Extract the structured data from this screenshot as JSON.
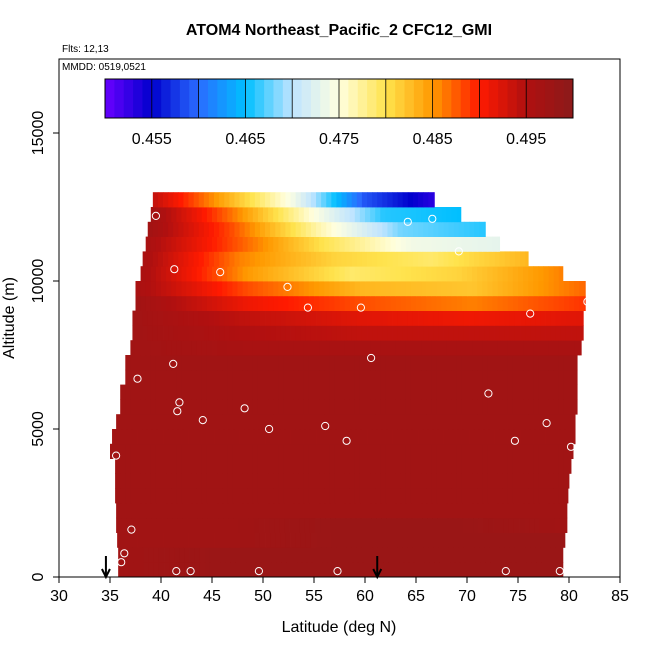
{
  "chart_data": {
    "type": "heatmap",
    "title": "ATOM4 Northeast_Pacific_2 CFC12_GMI",
    "flights_label": "Flts: 12,13",
    "date_label": "MMDD: 0519,0521",
    "xlabel": "Latitude (deg N)",
    "ylabel": "Altitude (m)",
    "xlim": [
      30,
      85
    ],
    "ylim": [
      0,
      17500
    ],
    "x_ticks": [
      "30",
      "35",
      "40",
      "45",
      "50",
      "55",
      "60",
      "65",
      "70",
      "75",
      "80",
      "85"
    ],
    "y_ticks": [
      "0",
      "5000",
      "10000",
      "15000"
    ],
    "colorbar": {
      "range": [
        0.45,
        0.5
      ],
      "tick_labels": [
        "0.455",
        "0.465",
        "0.475",
        "0.485",
        "0.495"
      ],
      "colors": [
        "#6a00ff",
        "#0000cd",
        "#2a6cff",
        "#00bfff",
        "#bfe4ff",
        "#ffffe0",
        "#ffe34d",
        "#ff9900",
        "#ff1a00",
        "#b01010",
        "#8b1a1a"
      ]
    },
    "grid": false,
    "legend": "colorbar top",
    "altitude_profile": [
      {
        "alt": 0,
        "lat_min": 35.8,
        "lat_max": 79.4,
        "values": [
          0.497,
          0.498,
          0.498,
          0.498,
          0.498
        ]
      },
      {
        "alt": 500,
        "lat_min": 35.8,
        "lat_max": 79.4,
        "values": [
          0.497,
          0.498,
          0.498,
          0.498,
          0.498
        ]
      },
      {
        "alt": 1000,
        "lat_min": 35.7,
        "lat_max": 79.6,
        "values": [
          0.497,
          0.497,
          0.498,
          0.498,
          0.498
        ]
      },
      {
        "alt": 1500,
        "lat_min": 35.6,
        "lat_max": 79.8,
        "values": [
          0.497,
          0.497,
          0.498,
          0.498,
          0.497
        ]
      },
      {
        "alt": 2000,
        "lat_min": 35.6,
        "lat_max": 79.8,
        "values": [
          0.497,
          0.497,
          0.497,
          0.497,
          0.497
        ]
      },
      {
        "alt": 2500,
        "lat_min": 35.5,
        "lat_max": 79.9,
        "values": [
          0.497,
          0.497,
          0.497,
          0.497,
          0.497
        ]
      },
      {
        "alt": 3000,
        "lat_min": 35.5,
        "lat_max": 80.0,
        "values": [
          0.497,
          0.497,
          0.497,
          0.497,
          0.497
        ]
      },
      {
        "alt": 3500,
        "lat_min": 35.5,
        "lat_max": 80.2,
        "values": [
          0.497,
          0.497,
          0.497,
          0.497,
          0.497
        ]
      },
      {
        "alt": 4000,
        "lat_min": 35.0,
        "lat_max": 80.4,
        "values": [
          0.497,
          0.497,
          0.497,
          0.497,
          0.497
        ]
      },
      {
        "alt": 4500,
        "lat_min": 35.2,
        "lat_max": 80.6,
        "values": [
          0.497,
          0.497,
          0.497,
          0.497,
          0.497
        ]
      },
      {
        "alt": 5000,
        "lat_min": 35.6,
        "lat_max": 80.6,
        "values": [
          0.497,
          0.497,
          0.497,
          0.497,
          0.497
        ]
      },
      {
        "alt": 5500,
        "lat_min": 36.0,
        "lat_max": 80.8,
        "values": [
          0.497,
          0.497,
          0.497,
          0.497,
          0.497
        ]
      },
      {
        "alt": 6000,
        "lat_min": 36.0,
        "lat_max": 80.8,
        "values": [
          0.497,
          0.497,
          0.497,
          0.497,
          0.497
        ]
      },
      {
        "alt": 6500,
        "lat_min": 36.5,
        "lat_max": 80.8,
        "values": [
          0.497,
          0.497,
          0.497,
          0.497,
          0.497
        ]
      },
      {
        "alt": 7000,
        "lat_min": 36.5,
        "lat_max": 80.8,
        "values": [
          0.497,
          0.497,
          0.497,
          0.497,
          0.497
        ]
      },
      {
        "alt": 7500,
        "lat_min": 37.0,
        "lat_max": 81.2,
        "values": [
          0.497,
          0.496,
          0.496,
          0.496,
          0.496
        ]
      },
      {
        "alt": 8000,
        "lat_min": 37.2,
        "lat_max": 81.4,
        "values": [
          0.497,
          0.495,
          0.494,
          0.494,
          0.494
        ]
      },
      {
        "alt": 8500,
        "lat_min": 37.2,
        "lat_max": 81.4,
        "values": [
          0.497,
          0.494,
          0.492,
          0.491,
          0.492
        ]
      },
      {
        "alt": 9000,
        "lat_min": 37.5,
        "lat_max": 81.6,
        "values": [
          0.497,
          0.491,
          0.488,
          0.486,
          0.489
        ]
      },
      {
        "alt": 9500,
        "lat_min": 37.5,
        "lat_max": 81.6,
        "values": [
          0.496,
          0.488,
          0.483,
          0.482,
          0.487
        ]
      },
      {
        "alt": 10000,
        "lat_min": 38.0,
        "lat_max": 79.4,
        "values": [
          0.496,
          0.485,
          0.479,
          0.481,
          0.486
        ]
      },
      {
        "alt": 10500,
        "lat_min": 38.2,
        "lat_max": 76.0,
        "values": [
          0.496,
          0.486,
          0.481,
          0.479,
          0.483
        ]
      },
      {
        "alt": 11000,
        "lat_min": 38.5,
        "lat_max": 73.2,
        "values": [
          0.496,
          0.488,
          0.48,
          0.474,
          0.473
        ]
      },
      {
        "alt": 11500,
        "lat_min": 38.7,
        "lat_max": 71.8,
        "values": [
          0.497,
          0.488,
          0.477,
          0.468,
          0.466
        ]
      },
      {
        "alt": 12000,
        "lat_min": 39.0,
        "lat_max": 69.4,
        "values": [
          0.497,
          0.487,
          0.476,
          0.466,
          0.465
        ]
      },
      {
        "alt": 12500,
        "lat_min": 39.2,
        "lat_max": 66.8,
        "values": [
          0.494,
          0.484,
          0.474,
          0.459,
          0.453
        ]
      }
    ],
    "observations": [
      {
        "lat": 36.1,
        "alt": 500
      },
      {
        "lat": 36.4,
        "alt": 800
      },
      {
        "lat": 37.1,
        "alt": 1600
      },
      {
        "lat": 35.6,
        "alt": 4100
      },
      {
        "lat": 37.7,
        "alt": 6700
      },
      {
        "lat": 41.2,
        "alt": 7200
      },
      {
        "lat": 41.6,
        "alt": 5600
      },
      {
        "lat": 41.8,
        "alt": 5900
      },
      {
        "lat": 44.1,
        "alt": 5300
      },
      {
        "lat": 48.2,
        "alt": 5700
      },
      {
        "lat": 50.6,
        "alt": 5000
      },
      {
        "lat": 56.1,
        "alt": 5100
      },
      {
        "lat": 58.2,
        "alt": 4600
      },
      {
        "lat": 60.6,
        "alt": 7400
      },
      {
        "lat": 72.1,
        "alt": 6200
      },
      {
        "lat": 74.7,
        "alt": 4600
      },
      {
        "lat": 77.8,
        "alt": 5200
      },
      {
        "lat": 80.2,
        "alt": 4400
      },
      {
        "lat": 41.5,
        "alt": 200
      },
      {
        "lat": 42.9,
        "alt": 200
      },
      {
        "lat": 49.6,
        "alt": 200
      },
      {
        "lat": 57.3,
        "alt": 200
      },
      {
        "lat": 73.8,
        "alt": 200
      },
      {
        "lat": 79.1,
        "alt": 200
      },
      {
        "lat": 39.5,
        "alt": 12200
      },
      {
        "lat": 41.3,
        "alt": 10400
      },
      {
        "lat": 45.8,
        "alt": 10300
      },
      {
        "lat": 52.4,
        "alt": 9800
      },
      {
        "lat": 54.4,
        "alt": 9100
      },
      {
        "lat": 59.6,
        "alt": 9100
      },
      {
        "lat": 64.2,
        "alt": 12000
      },
      {
        "lat": 66.6,
        "alt": 12100
      },
      {
        "lat": 69.2,
        "alt": 11000
      },
      {
        "lat": 76.2,
        "alt": 8900
      },
      {
        "lat": 81.8,
        "alt": 9300
      }
    ],
    "arrows": [
      {
        "lat": 34.6
      },
      {
        "lat": 61.2
      }
    ]
  }
}
